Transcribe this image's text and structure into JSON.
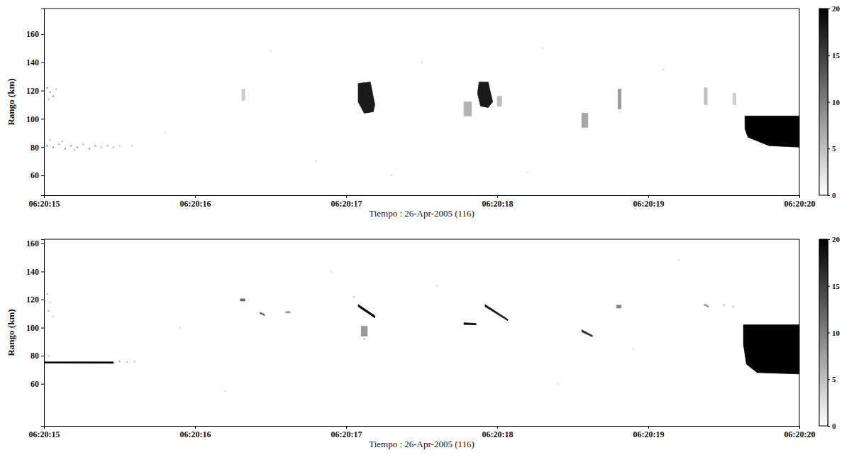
{
  "chart_data": [
    {
      "type": "heatmap",
      "xlabel": "Tiempo : 26-Apr-2005 (116)",
      "ylabel": "Rango (km)",
      "xlim": [
        15,
        20
      ],
      "xticks": [
        {
          "value": 15,
          "label": "06:20:15"
        },
        {
          "value": 16,
          "label": "06:20:16"
        },
        {
          "value": 17,
          "label": "06:20:17"
        },
        {
          "value": 18,
          "label": "06:20:18"
        },
        {
          "value": 19,
          "label": "06:20:19"
        },
        {
          "value": 20,
          "label": "06:20:20"
        }
      ],
      "ylim": [
        46,
        178
      ],
      "yticks": [
        60,
        80,
        100,
        120,
        140,
        160
      ],
      "colorbar": {
        "range": [
          0,
          20
        ],
        "ticks": [
          0,
          5,
          10,
          15,
          20
        ]
      },
      "cells": [
        [
          15.02,
          122,
          8
        ],
        [
          15.04,
          119,
          7
        ],
        [
          15.06,
          116,
          9
        ],
        [
          15.03,
          114,
          6
        ],
        [
          15.08,
          121,
          5
        ],
        [
          15.02,
          81,
          9
        ],
        [
          15.06,
          80,
          8
        ],
        [
          15.1,
          82,
          7
        ],
        [
          15.14,
          79,
          9
        ],
        [
          15.18,
          81,
          8
        ],
        [
          15.22,
          80,
          7
        ],
        [
          15.26,
          82,
          6
        ],
        [
          15.3,
          79,
          8
        ],
        [
          15.34,
          81,
          7
        ],
        [
          15.38,
          80,
          6
        ],
        [
          15.42,
          81,
          6
        ],
        [
          15.46,
          80,
          5
        ],
        [
          15.5,
          81,
          4
        ],
        [
          15.58,
          81,
          4
        ],
        [
          15.12,
          84,
          5
        ],
        [
          15.2,
          78,
          6
        ],
        [
          15.04,
          85,
          5
        ],
        [
          16.5,
          148,
          3
        ],
        [
          17.5,
          140,
          3
        ],
        [
          18.3,
          150,
          3
        ],
        [
          16.8,
          70,
          3
        ],
        [
          17.3,
          60,
          3
        ],
        [
          19.1,
          135,
          3
        ],
        [
          18.2,
          62,
          3
        ],
        [
          15.8,
          90,
          3
        ]
      ],
      "echoes": [
        {
          "points": [
            [
              17.08,
              125
            ],
            [
              17.16,
              126
            ],
            [
              17.19,
              110
            ],
            [
              17.18,
              105
            ],
            [
              17.12,
              104
            ],
            [
              17.08,
              112
            ]
          ],
          "value": 18
        },
        {
          "points": [
            [
              17.88,
              126
            ],
            [
              17.94,
              126
            ],
            [
              17.97,
              112
            ],
            [
              17.94,
              108
            ],
            [
              17.89,
              109
            ],
            [
              17.87,
              118
            ]
          ],
          "value": 18
        },
        {
          "points": [
            [
              17.78,
              112
            ],
            [
              17.83,
              112
            ],
            [
              17.83,
              102
            ],
            [
              17.78,
              102
            ]
          ],
          "value": 6
        },
        {
          "points": [
            [
              18.0,
              116
            ],
            [
              18.03,
              116
            ],
            [
              18.03,
              109
            ],
            [
              18.0,
              109
            ]
          ],
          "value": 5
        },
        {
          "points": [
            [
              18.56,
              104
            ],
            [
              18.6,
              104
            ],
            [
              18.6,
              94
            ],
            [
              18.56,
              94
            ]
          ],
          "value": 7
        },
        {
          "points": [
            [
              18.8,
              121
            ],
            [
              18.82,
              121
            ],
            [
              18.82,
              107
            ],
            [
              18.8,
              107
            ]
          ],
          "value": 8
        },
        {
          "points": [
            [
              19.37,
              122
            ],
            [
              19.39,
              122
            ],
            [
              19.39,
              110
            ],
            [
              19.37,
              110
            ]
          ],
          "value": 5
        },
        {
          "points": [
            [
              19.56,
              118
            ],
            [
              19.58,
              118
            ],
            [
              19.58,
              110
            ],
            [
              19.56,
              110
            ]
          ],
          "value": 4
        },
        {
          "points": [
            [
              16.31,
              121
            ],
            [
              16.33,
              121
            ],
            [
              16.33,
              113
            ],
            [
              16.31,
              113
            ]
          ],
          "value": 4
        },
        {
          "points": [
            [
              19.64,
              102
            ],
            [
              20,
              102
            ],
            [
              20,
              80
            ],
            [
              19.8,
              81
            ],
            [
              19.66,
              87
            ],
            [
              19.64,
              93
            ]
          ],
          "value": 20
        }
      ]
    },
    {
      "type": "heatmap",
      "xlabel": "Tiempo : 26-Apr-2005 (116)",
      "ylabel": "Rango (km)",
      "xlim": [
        15,
        20
      ],
      "xticks": [
        {
          "value": 15,
          "label": "06:20:15"
        },
        {
          "value": 16,
          "label": "06:20:16"
        },
        {
          "value": 17,
          "label": "06:20:17"
        },
        {
          "value": 18,
          "label": "06:20:18"
        },
        {
          "value": 19,
          "label": "06:20:19"
        },
        {
          "value": 20,
          "label": "06:20:20"
        }
      ],
      "ylim": [
        30,
        163
      ],
      "yticks": [
        60,
        80,
        100,
        120,
        140,
        160
      ],
      "colorbar": {
        "range": [
          0,
          20
        ],
        "ticks": [
          0,
          5,
          10,
          15,
          20
        ]
      },
      "cells": [
        [
          15.02,
          124,
          6
        ],
        [
          15.04,
          118,
          5
        ],
        [
          15.03,
          112,
          6
        ],
        [
          15.06,
          108,
          4
        ],
        [
          15.5,
          76,
          6
        ],
        [
          15.55,
          75.5,
          5
        ],
        [
          15.6,
          76,
          4
        ],
        [
          15.03,
          80,
          5
        ],
        [
          17.05,
          122,
          5
        ],
        [
          17.12,
          92,
          6
        ],
        [
          16.9,
          140,
          3
        ],
        [
          17.6,
          130,
          3
        ],
        [
          18.4,
          60,
          3
        ],
        [
          16.2,
          55,
          3
        ],
        [
          19.2,
          148,
          3
        ],
        [
          18.9,
          85,
          3
        ],
        [
          15.9,
          100,
          3
        ],
        [
          19.5,
          116,
          5
        ],
        [
          19.56,
          115,
          5
        ]
      ],
      "echoes": [
        {
          "points": [
            [
              15.0,
              75.6
            ],
            [
              15.46,
              75.6
            ],
            [
              15.46,
              74.6
            ],
            [
              15.0,
              74.8
            ]
          ],
          "value": 20
        },
        {
          "points": [
            [
              16.3,
              120.5
            ],
            [
              16.33,
              120.5
            ],
            [
              16.33,
              119
            ],
            [
              16.3,
              119
            ]
          ],
          "value": 12
        },
        {
          "points": [
            [
              16.43,
              111
            ],
            [
              16.46,
              109.5
            ],
            [
              16.46,
              108.5
            ],
            [
              16.43,
              110
            ]
          ],
          "value": 12
        },
        {
          "points": [
            [
              16.6,
              111.5
            ],
            [
              16.63,
              111.5
            ],
            [
              16.63,
              110.5
            ],
            [
              16.6,
              110.5
            ]
          ],
          "value": 8
        },
        {
          "points": [
            [
              17.08,
              116.5
            ],
            [
              17.19,
              108.5
            ],
            [
              17.19,
              107
            ],
            [
              17.08,
              115
            ]
          ],
          "value": 20
        },
        {
          "points": [
            [
              17.1,
              101
            ],
            [
              17.14,
              101
            ],
            [
              17.14,
              94
            ],
            [
              17.1,
              94
            ]
          ],
          "value": 8
        },
        {
          "points": [
            [
              17.78,
              103.5
            ],
            [
              17.86,
              103
            ],
            [
              17.86,
              102
            ],
            [
              17.78,
              102.3
            ]
          ],
          "value": 20
        },
        {
          "points": [
            [
              17.92,
              116.5
            ],
            [
              18.07,
              106
            ],
            [
              18.07,
              105
            ],
            [
              17.92,
              115
            ]
          ],
          "value": 18
        },
        {
          "points": [
            [
              18.56,
              98.5
            ],
            [
              18.63,
              94.5
            ],
            [
              18.63,
              93.5
            ],
            [
              18.56,
              97
            ]
          ],
          "value": 16
        },
        {
          "points": [
            [
              18.79,
              116
            ],
            [
              18.82,
              116
            ],
            [
              18.82,
              114
            ],
            [
              18.79,
              114
            ]
          ],
          "value": 10
        },
        {
          "points": [
            [
              19.37,
              117
            ],
            [
              19.4,
              115.5
            ],
            [
              19.4,
              114.5
            ],
            [
              19.37,
              116
            ]
          ],
          "value": 8
        },
        {
          "points": [
            [
              19.63,
              102
            ],
            [
              20,
              102
            ],
            [
              20,
              67
            ],
            [
              19.72,
              68
            ],
            [
              19.65,
              74
            ],
            [
              19.63,
              88
            ]
          ],
          "value": 20
        }
      ]
    }
  ]
}
